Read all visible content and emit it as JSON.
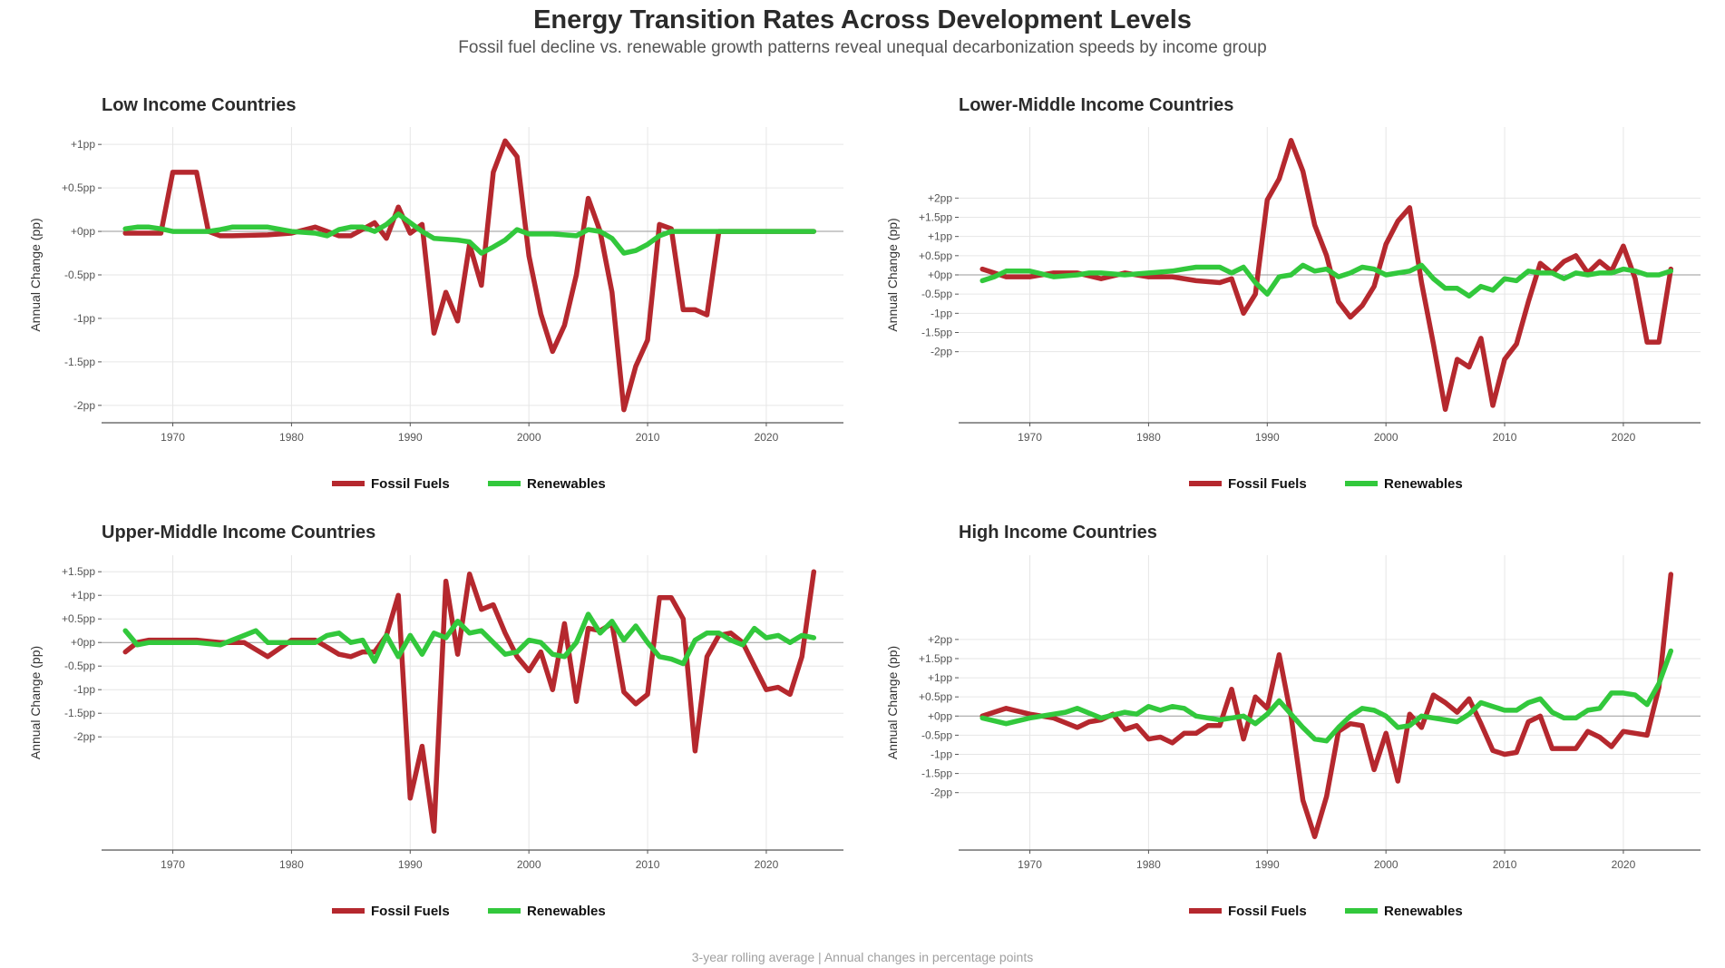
{
  "title": "Energy Transition Rates Across Development Levels",
  "subtitle": "Fossil fuel decline vs. renewable growth patterns reveal unequal decarbonization speeds by income group",
  "caption": "3-year rolling average | Annual changes in percentage points",
  "colors": {
    "fossil": "#b5282e",
    "renewables": "#32c83c",
    "grid": "#e6e6e6",
    "zero": "#9a9a9a",
    "axis": "#555555"
  },
  "chart_data": [
    {
      "type": "line",
      "title": "Low Income Countries",
      "xlabel": "",
      "ylabel": "Annual Change (pp)",
      "x_ticks": [
        1970,
        1980,
        1990,
        2000,
        2010,
        2020
      ],
      "y_ticks": [
        1,
        0.5,
        0,
        -0.5,
        -1,
        -1.5,
        -2
      ],
      "y_tick_labels": [
        "+1pp",
        "+0.5pp",
        "+0pp",
        "-0.5pp",
        "-1pp",
        "-1.5pp",
        "-2pp"
      ],
      "xlim": [
        1964,
        2026.5
      ],
      "ylim": [
        -2.2,
        1.2
      ],
      "legend": "bottom",
      "series": [
        {
          "name": "Fossil Fuels",
          "x": [
            1966,
            1968,
            1969,
            1970,
            1971,
            1972,
            1973,
            1974,
            1975,
            1978,
            1980,
            1982,
            1984,
            1985,
            1987,
            1988,
            1989,
            1990,
            1991,
            1992,
            1993,
            1994,
            1995,
            1996,
            1997,
            1998,
            1999,
            2000,
            2001,
            2002,
            2003,
            2004,
            2005,
            2006,
            2007,
            2008,
            2009,
            2010,
            2011,
            2012,
            2013,
            2014,
            2015,
            2016,
            2017,
            2024
          ],
          "values": [
            -0.02,
            -0.02,
            -0.02,
            0.68,
            0.68,
            0.68,
            0.0,
            -0.05,
            -0.05,
            -0.04,
            -0.02,
            0.05,
            -0.05,
            -0.05,
            0.1,
            -0.08,
            0.28,
            -0.02,
            0.08,
            -1.17,
            -0.7,
            -1.03,
            -0.15,
            -0.62,
            0.68,
            1.04,
            0.86,
            -0.28,
            -0.95,
            -1.38,
            -1.08,
            -0.5,
            0.38,
            0.0,
            -0.7,
            -2.05,
            -1.55,
            -1.25,
            0.08,
            0.03,
            -0.9,
            -0.9,
            -0.96,
            0.0,
            0.0,
            0.0
          ]
        },
        {
          "name": "Renewables",
          "x": [
            1966,
            1967,
            1968,
            1969,
            1970,
            1971,
            1972,
            1973,
            1974,
            1975,
            1978,
            1980,
            1982,
            1983,
            1984,
            1985,
            1986,
            1987,
            1988,
            1989,
            1990,
            1991,
            1992,
            1994,
            1995,
            1996,
            1997,
            1998,
            1999,
            2000,
            2002,
            2004,
            2005,
            2006,
            2007,
            2008,
            2009,
            2010,
            2011,
            2012,
            2024
          ],
          "values": [
            0.03,
            0.05,
            0.05,
            0.03,
            0.0,
            0.0,
            0.0,
            0.0,
            0.02,
            0.05,
            0.05,
            0.0,
            -0.02,
            -0.05,
            0.02,
            0.05,
            0.05,
            0.0,
            0.08,
            0.2,
            0.1,
            0.0,
            -0.08,
            -0.1,
            -0.12,
            -0.25,
            -0.18,
            -0.1,
            0.02,
            -0.03,
            -0.03,
            -0.05,
            0.02,
            0.0,
            -0.08,
            -0.25,
            -0.22,
            -0.15,
            -0.05,
            0.0,
            0.0
          ]
        }
      ]
    },
    {
      "type": "line",
      "title": "Lower-Middle Income Countries",
      "xlabel": "",
      "ylabel": "Annual Change (pp)",
      "x_ticks": [
        1970,
        1980,
        1990,
        2000,
        2010,
        2020
      ],
      "y_ticks": [
        2,
        1.5,
        1,
        0.5,
        0,
        -0.5,
        -1,
        -1.5,
        -2
      ],
      "y_tick_labels": [
        "+2pp",
        "+1.5pp",
        "+1pp",
        "+0.5pp",
        "+0pp",
        "-0.5pp",
        "-1pp",
        "-1.5pp",
        "-2pp"
      ],
      "xlim": [
        1964,
        2026.5
      ],
      "ylim": [
        -3.85,
        3.85
      ],
      "legend": "bottom",
      "series": [
        {
          "name": "Fossil Fuels",
          "x": [
            1966,
            1968,
            1970,
            1972,
            1974,
            1976,
            1978,
            1980,
            1982,
            1984,
            1986,
            1987,
            1988,
            1989,
            1990,
            1991,
            1992,
            1993,
            1994,
            1995,
            1996,
            1997,
            1998,
            1999,
            2000,
            2001,
            2002,
            2003,
            2004,
            2005,
            2006,
            2007,
            2008,
            2009,
            2010,
            2011,
            2012,
            2013,
            2014,
            2015,
            2016,
            2017,
            2018,
            2019,
            2020,
            2021,
            2022,
            2023,
            2024
          ],
          "values": [
            0.15,
            -0.05,
            -0.05,
            0.05,
            0.05,
            -0.1,
            0.05,
            -0.05,
            -0.05,
            -0.15,
            -0.2,
            -0.1,
            -1.0,
            -0.5,
            1.95,
            2.5,
            3.5,
            2.7,
            1.3,
            0.5,
            -0.7,
            -1.1,
            -0.8,
            -0.3,
            0.8,
            1.4,
            1.75,
            -0.2,
            -1.8,
            -3.5,
            -2.2,
            -2.4,
            -1.65,
            -3.4,
            -2.2,
            -1.8,
            -0.7,
            0.3,
            0.05,
            0.35,
            0.5,
            0.05,
            0.35,
            0.1,
            0.75,
            -0.1,
            -1.75,
            -1.75,
            0.15
          ]
        },
        {
          "name": "Renewables",
          "x": [
            1966,
            1967,
            1968,
            1970,
            1972,
            1974,
            1975,
            1976,
            1978,
            1980,
            1982,
            1983,
            1984,
            1986,
            1987,
            1988,
            1989,
            1990,
            1991,
            1992,
            1993,
            1994,
            1995,
            1996,
            1997,
            1998,
            1999,
            2000,
            2001,
            2002,
            2003,
            2004,
            2005,
            2006,
            2007,
            2008,
            2009,
            2010,
            2011,
            2012,
            2013,
            2014,
            2015,
            2016,
            2017,
            2018,
            2019,
            2020,
            2021,
            2022,
            2023,
            2024
          ],
          "values": [
            -0.15,
            -0.05,
            0.1,
            0.1,
            -0.05,
            0.0,
            0.05,
            0.05,
            0.0,
            0.05,
            0.1,
            0.15,
            0.2,
            0.2,
            0.05,
            0.2,
            -0.2,
            -0.5,
            -0.05,
            0.0,
            0.25,
            0.1,
            0.15,
            -0.05,
            0.05,
            0.2,
            0.15,
            0.0,
            0.05,
            0.1,
            0.25,
            -0.1,
            -0.35,
            -0.35,
            -0.55,
            -0.3,
            -0.4,
            -0.1,
            -0.15,
            0.1,
            0.05,
            0.05,
            -0.1,
            0.05,
            0.0,
            0.05,
            0.05,
            0.15,
            0.1,
            0.0,
            0.0,
            0.1
          ]
        }
      ]
    },
    {
      "type": "line",
      "title": "Upper-Middle Income Countries",
      "xlabel": "",
      "ylabel": "Annual Change (pp)",
      "x_ticks": [
        1970,
        1980,
        1990,
        2000,
        2010,
        2020
      ],
      "y_ticks": [
        1.5,
        1,
        0.5,
        0,
        -0.5,
        -1,
        -1.5,
        -2
      ],
      "y_tick_labels": [
        "+1.5pp",
        "+1pp",
        "+0.5pp",
        "+0pp",
        "-0.5pp",
        "-1pp",
        "-1.5pp",
        "-2pp"
      ],
      "xlim": [
        1964,
        2026.5
      ],
      "ylim": [
        -4.4,
        1.85
      ],
      "legend": "bottom",
      "series": [
        {
          "name": "Fossil Fuels",
          "x": [
            1966,
            1967,
            1968,
            1970,
            1972,
            1974,
            1976,
            1978,
            1980,
            1982,
            1983,
            1984,
            1985,
            1986,
            1987,
            1988,
            1989,
            1990,
            1991,
            1992,
            1993,
            1994,
            1995,
            1996,
            1997,
            1998,
            1999,
            2000,
            2001,
            2002,
            2003,
            2004,
            2005,
            2006,
            2007,
            2008,
            2009,
            2010,
            2011,
            2012,
            2013,
            2014,
            2015,
            2016,
            2017,
            2018,
            2019,
            2020,
            2021,
            2022,
            2023,
            2024
          ],
          "values": [
            -0.2,
            0.0,
            0.05,
            0.05,
            0.05,
            0.0,
            0.0,
            -0.3,
            0.05,
            0.05,
            -0.1,
            -0.25,
            -0.3,
            -0.2,
            -0.2,
            0.15,
            1.0,
            -3.3,
            -2.2,
            -4.0,
            1.3,
            -0.25,
            1.45,
            0.7,
            0.8,
            0.2,
            -0.3,
            -0.6,
            -0.2,
            -1.0,
            0.4,
            -1.25,
            0.3,
            0.25,
            0.4,
            -1.05,
            -1.3,
            -1.1,
            0.95,
            0.95,
            0.5,
            -2.3,
            -0.3,
            0.15,
            0.2,
            0.0,
            -0.5,
            -1.0,
            -0.95,
            -1.1,
            -0.3,
            1.5
          ]
        },
        {
          "name": "Renewables",
          "x": [
            1966,
            1967,
            1968,
            1970,
            1972,
            1974,
            1976,
            1977,
            1978,
            1980,
            1982,
            1983,
            1984,
            1985,
            1986,
            1987,
            1988,
            1989,
            1990,
            1991,
            1992,
            1993,
            1994,
            1995,
            1996,
            1997,
            1998,
            1999,
            2000,
            2001,
            2002,
            2003,
            2004,
            2005,
            2006,
            2007,
            2008,
            2009,
            2010,
            2011,
            2012,
            2013,
            2014,
            2015,
            2016,
            2017,
            2018,
            2019,
            2020,
            2021,
            2022,
            2023,
            2024
          ],
          "values": [
            0.25,
            -0.05,
            0.0,
            0.0,
            0.0,
            -0.05,
            0.15,
            0.25,
            0.0,
            0.0,
            0.0,
            0.15,
            0.2,
            0.0,
            0.05,
            -0.4,
            0.15,
            -0.3,
            0.15,
            -0.25,
            0.2,
            0.1,
            0.45,
            0.2,
            0.25,
            0.0,
            -0.25,
            -0.2,
            0.05,
            0.0,
            -0.25,
            -0.3,
            0.0,
            0.6,
            0.2,
            0.45,
            0.05,
            0.35,
            0.0,
            -0.3,
            -0.35,
            -0.45,
            0.05,
            0.2,
            0.2,
            0.05,
            -0.05,
            0.3,
            0.1,
            0.15,
            0.0,
            0.15,
            0.1
          ]
        }
      ]
    },
    {
      "type": "line",
      "title": "High Income Countries",
      "xlabel": "",
      "ylabel": "Annual Change (pp)",
      "x_ticks": [
        1970,
        1980,
        1990,
        2000,
        2010,
        2020
      ],
      "y_ticks": [
        2,
        1.5,
        1,
        0.5,
        0,
        -0.5,
        -1,
        -1.5,
        -2
      ],
      "y_tick_labels": [
        "+2pp",
        "+1.5pp",
        "+1pp",
        "+0.5pp",
        "+0pp",
        "-0.5pp",
        "-1pp",
        "-1.5pp",
        "-2pp"
      ],
      "xlim": [
        1964,
        2026.5
      ],
      "ylim": [
        -3.5,
        4.2
      ],
      "legend": "bottom",
      "series": [
        {
          "name": "Fossil Fuels",
          "x": [
            1966,
            1968,
            1970,
            1972,
            1974,
            1975,
            1976,
            1977,
            1978,
            1979,
            1980,
            1981,
            1982,
            1983,
            1984,
            1985,
            1986,
            1987,
            1988,
            1989,
            1990,
            1991,
            1992,
            1993,
            1994,
            1995,
            1996,
            1997,
            1998,
            1999,
            2000,
            2001,
            2002,
            2003,
            2004,
            2005,
            2006,
            2007,
            2008,
            2009,
            2010,
            2011,
            2012,
            2013,
            2014,
            2015,
            2016,
            2017,
            2018,
            2019,
            2020,
            2021,
            2022,
            2023,
            2024
          ],
          "values": [
            0.0,
            0.2,
            0.05,
            -0.05,
            -0.3,
            -0.15,
            -0.1,
            0.05,
            -0.35,
            -0.25,
            -0.6,
            -0.55,
            -0.7,
            -0.45,
            -0.45,
            -0.25,
            -0.25,
            0.7,
            -0.6,
            0.5,
            0.2,
            1.6,
            0.0,
            -2.2,
            -3.15,
            -2.1,
            -0.4,
            -0.2,
            -0.25,
            -1.4,
            -0.45,
            -1.7,
            0.05,
            -0.3,
            0.55,
            0.35,
            0.1,
            0.45,
            -0.2,
            -0.9,
            -1.0,
            -0.95,
            -0.15,
            0.0,
            -0.85,
            -0.85,
            -0.85,
            -0.4,
            -0.55,
            -0.8,
            -0.4,
            -0.45,
            -0.5,
            0.75,
            3.7
          ]
        },
        {
          "name": "Renewables",
          "x": [
            1966,
            1968,
            1970,
            1972,
            1973,
            1974,
            1976,
            1978,
            1979,
            1980,
            1981,
            1982,
            1983,
            1984,
            1986,
            1988,
            1989,
            1990,
            1991,
            1992,
            1993,
            1994,
            1995,
            1996,
            1997,
            1998,
            1999,
            2000,
            2001,
            2002,
            2003,
            2004,
            2005,
            2006,
            2007,
            2008,
            2009,
            2010,
            2011,
            2012,
            2013,
            2014,
            2015,
            2016,
            2017,
            2018,
            2019,
            2020,
            2021,
            2022,
            2023,
            2024
          ],
          "values": [
            -0.05,
            -0.2,
            -0.05,
            0.05,
            0.1,
            0.2,
            -0.05,
            0.1,
            0.05,
            0.25,
            0.15,
            0.25,
            0.2,
            0.0,
            -0.1,
            0.0,
            -0.2,
            0.05,
            0.4,
            0.05,
            -0.3,
            -0.6,
            -0.65,
            -0.3,
            0.0,
            0.2,
            0.15,
            0.0,
            -0.3,
            -0.25,
            0.0,
            -0.05,
            -0.1,
            -0.15,
            0.05,
            0.35,
            0.25,
            0.15,
            0.15,
            0.35,
            0.45,
            0.1,
            -0.05,
            -0.05,
            0.15,
            0.2,
            0.6,
            0.6,
            0.55,
            0.3,
            0.85,
            1.7
          ]
        }
      ]
    }
  ]
}
